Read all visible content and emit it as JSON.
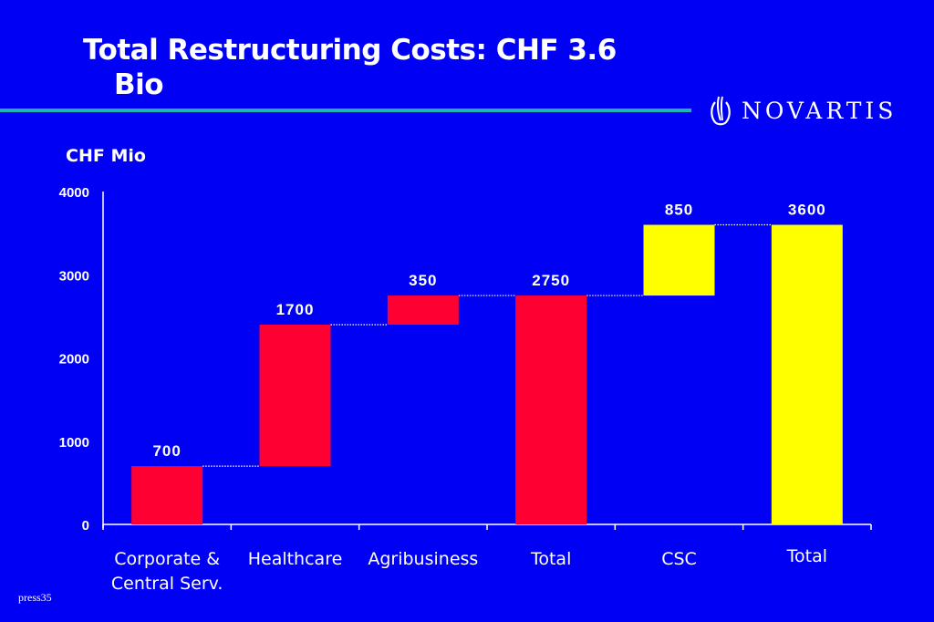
{
  "slide": {
    "title_line1": "Total Restructuring Costs:  CHF 3.6",
    "title_line2": "Bio",
    "logo_text": "NOVARTIS",
    "unit_label": "CHF Mio",
    "footer": "press35",
    "colors": {
      "background": "#0000f5",
      "rule": "#1fb5b5",
      "red": "#ff0033",
      "yellow": "#ffff00",
      "text": "#ffffff"
    }
  },
  "chart_data": {
    "type": "bar",
    "subtype": "waterfall",
    "title": "Total Restructuring Costs:  CHF 3.6 Bio",
    "ylabel": "CHF Mio",
    "xlabel": "",
    "ylim": [
      0,
      4000
    ],
    "yticks": [
      0,
      1000,
      2000,
      3000,
      4000
    ],
    "ytick_labels": [
      "0",
      "1000",
      "2000",
      "3000",
      "4000"
    ],
    "grid": false,
    "legend": "none",
    "categories": [
      "Corporate & Central Serv.",
      "Healthcare",
      "Agribusiness",
      "Total",
      "CSC",
      "Total"
    ],
    "category_lines": [
      [
        "Corporate &",
        "Central Serv."
      ],
      [
        "Healthcare"
      ],
      [
        "Agribusiness"
      ],
      [
        "Total"
      ],
      [
        "CSC"
      ],
      [
        "Total"
      ]
    ],
    "bars": [
      {
        "label": "700",
        "value": 700,
        "base": 0,
        "top": 700,
        "color": "red"
      },
      {
        "label": "1700",
        "value": 1700,
        "base": 700,
        "top": 2400,
        "color": "red"
      },
      {
        "label": "350",
        "value": 350,
        "base": 2400,
        "top": 2750,
        "color": "red"
      },
      {
        "label": "2750",
        "value": 2750,
        "base": 0,
        "top": 2750,
        "color": "red"
      },
      {
        "label": "850",
        "value": 850,
        "base": 2750,
        "top": 3600,
        "color": "yellow"
      },
      {
        "label": "3600",
        "value": 3600,
        "base": 0,
        "top": 3600,
        "color": "yellow"
      }
    ],
    "connectors": [
      {
        "from": 0,
        "to": 1,
        "level": 700
      },
      {
        "from": 1,
        "to": 2,
        "level": 2400
      },
      {
        "from": 2,
        "to": 3,
        "level": 2750
      },
      {
        "from": 3,
        "to": 4,
        "level": 2750
      },
      {
        "from": 4,
        "to": 5,
        "level": 3600
      }
    ]
  }
}
